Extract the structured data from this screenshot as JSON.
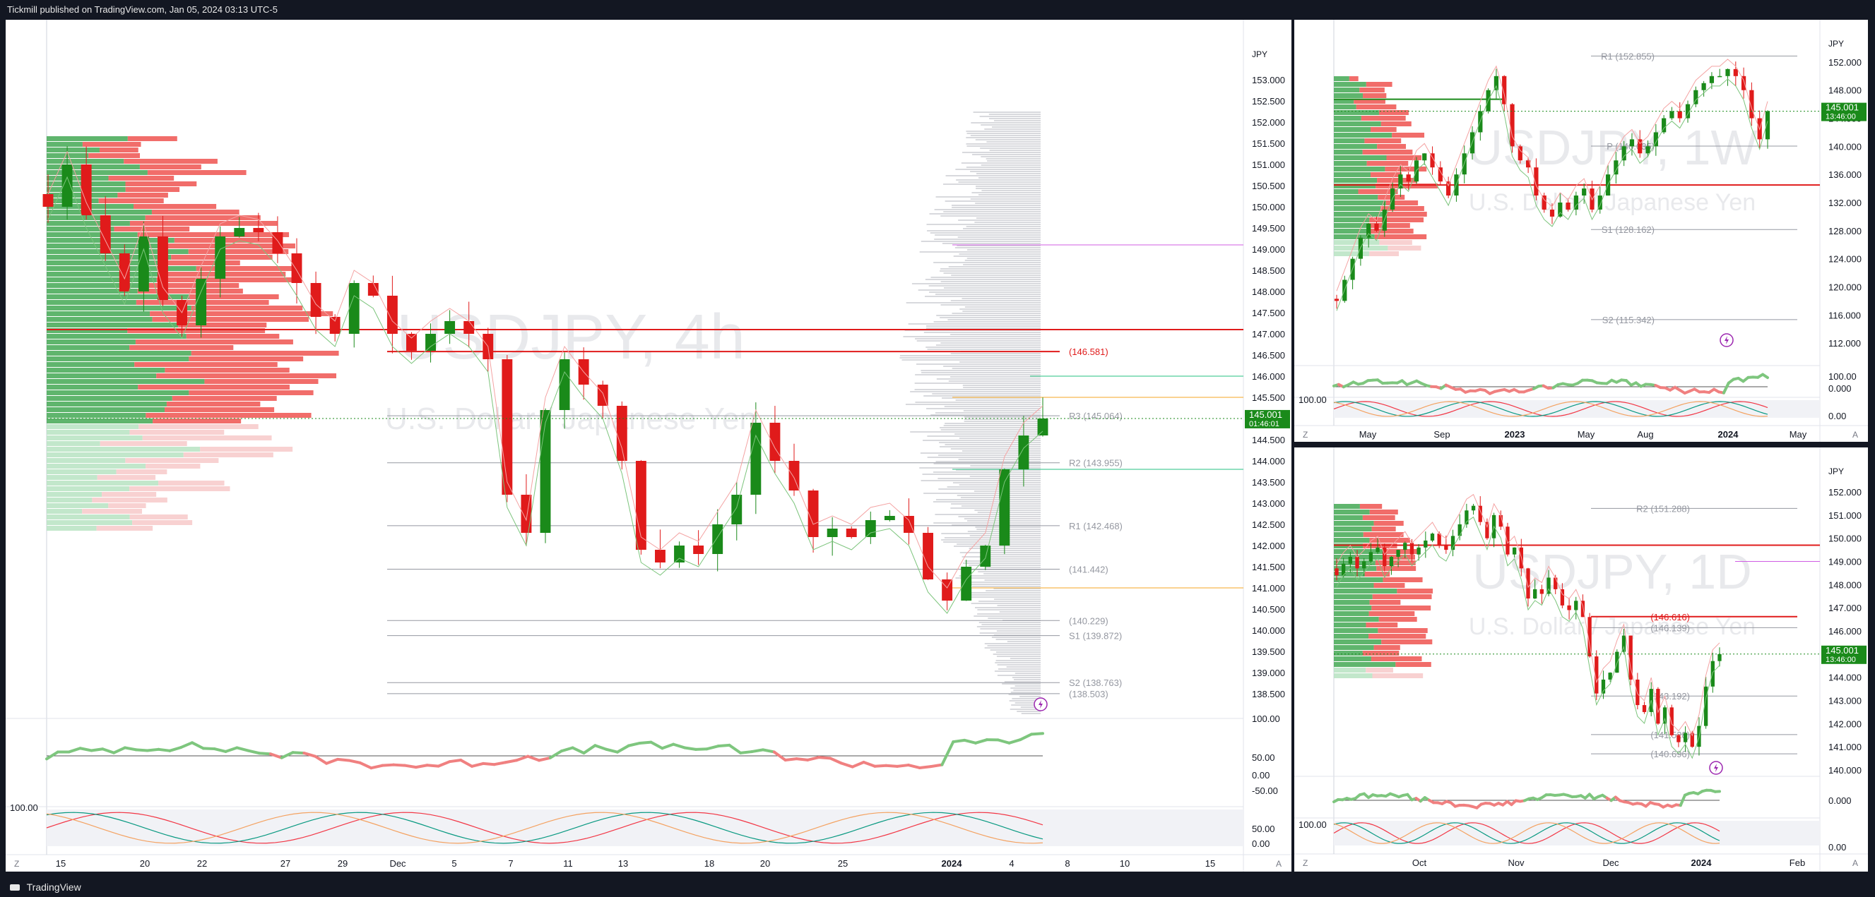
{
  "header": {
    "publish_line": "Tickmill published on TradingView.com, Jan 05, 2024 03:13 UTC-5"
  },
  "footer": {
    "brand": "TradingView"
  },
  "colors": {
    "up": "#089981",
    "down": "#f23645",
    "bull_candle": "#1a8a1a",
    "bear_candle": "#e01b1b"
  },
  "chart_data": [
    {
      "id": "main",
      "type": "candlestick",
      "watermark_symbol": "USDJPY, 4h",
      "watermark_name": "U.S. Dollar / Japanese Yen",
      "currency": "JPY",
      "last_price": "145.001",
      "countdown": "01:46:01",
      "y_ticks": [
        "153.000",
        "152.500",
        "152.000",
        "151.500",
        "151.000",
        "150.500",
        "150.000",
        "149.500",
        "149.000",
        "148.500",
        "148.000",
        "147.500",
        "147.000",
        "146.500",
        "146.000",
        "145.500",
        "145.000",
        "144.500",
        "144.000",
        "143.500",
        "143.000",
        "142.500",
        "142.000",
        "141.500",
        "141.000",
        "140.500",
        "140.000",
        "139.500",
        "139.000",
        "138.500"
      ],
      "x_ticks": [
        "15",
        "20",
        "22",
        "27",
        "29",
        "Dec",
        "5",
        "7",
        "11",
        "13",
        "18",
        "20",
        "25",
        "2024",
        "4",
        "8",
        "10",
        "15"
      ],
      "indicator_ticks": [
        "100.00",
        "50.00",
        "0.00",
        "-50.00"
      ],
      "osc_ticks": [
        "100.00",
        "50.00",
        "0.00"
      ],
      "ylim": [
        138.0,
        153.5
      ],
      "levels": [
        {
          "label": "(146.581)",
          "value": 146.581
        },
        {
          "label": "R3 (145.064)",
          "value": 145.064
        },
        {
          "label": "R2 (143.955)",
          "value": 143.955
        },
        {
          "label": "R1 (142.468)",
          "value": 142.468
        },
        {
          "label": "(141.442)",
          "value": 141.442
        },
        {
          "label": "(140.229)",
          "value": 140.229
        },
        {
          "label": "S1 (139.872)",
          "value": 139.872
        },
        {
          "label": "S2 (138.763)",
          "value": 138.763
        },
        {
          "label": "(138.503)",
          "value": 138.503
        }
      ],
      "closes": [
        150.0,
        151.0,
        149.8,
        148.9,
        148.0,
        149.3,
        147.8,
        147.2,
        148.3,
        149.3,
        149.5,
        149.4,
        148.9,
        148.2,
        147.4,
        147.0,
        148.2,
        147.9,
        147.0,
        146.6,
        147.0,
        147.3,
        147.0,
        146.4,
        143.2,
        142.3,
        145.2,
        146.4,
        145.8,
        145.3,
        144.0,
        141.9,
        141.6,
        142.0,
        141.8,
        142.5,
        143.2,
        144.9,
        144.0,
        143.3,
        142.2,
        142.4,
        142.2,
        142.6,
        142.7,
        142.3,
        141.2,
        140.7,
        141.5,
        142.0,
        143.8,
        144.6,
        145.0
      ],
      "x_range": [
        0,
        70
      ]
    },
    {
      "id": "weekly",
      "type": "candlestick",
      "watermark_symbol": "USDJPY, 1W",
      "watermark_name": "U.S. Dollar / Japanese Yen",
      "currency": "JPY",
      "last_price": "145.001",
      "countdown": "13:46:00",
      "y_ticks": [
        "152.000",
        "148.000",
        "144.000",
        "140.000",
        "136.000",
        "132.000",
        "128.000",
        "124.000",
        "120.000",
        "116.000",
        "112.000"
      ],
      "x_ticks": [
        "May",
        "Sep",
        "2023",
        "May",
        "Aug",
        "2024",
        "May"
      ],
      "indicator_ticks": [
        "100.00",
        "0.000"
      ],
      "osc_ticks": [
        "100.00",
        "0.00"
      ],
      "ylim": [
        110.0,
        154.0
      ],
      "levels": [
        {
          "label": "R1 (152.855)",
          "value": 152.855
        },
        {
          "label": "P (140.035)",
          "value": 140.035
        },
        {
          "label": "S1 (128.162)",
          "value": 128.162
        },
        {
          "label": "S2 (115.342)",
          "value": 115.342
        }
      ],
      "closes": [
        118,
        121,
        124,
        127,
        129,
        128,
        131,
        134,
        136,
        135,
        138,
        139,
        137,
        135,
        133,
        136,
        139,
        142,
        145,
        148,
        150,
        146,
        140,
        138,
        137,
        133,
        131,
        130,
        132,
        131,
        133,
        134,
        131,
        133,
        136,
        138,
        140,
        141,
        139,
        140,
        142,
        144,
        145,
        144,
        146,
        148,
        149,
        150,
        150,
        151,
        150,
        148,
        144,
        141,
        145
      ]
    },
    {
      "id": "daily",
      "type": "candlestick",
      "watermark_symbol": "USDJPY, 1D",
      "watermark_name": "U.S. Dollar / Japanese Yen",
      "currency": "JPY",
      "last_price": "145.001",
      "countdown": "13:46:00",
      "y_ticks": [
        "152.000",
        "151.000",
        "150.000",
        "149.000",
        "148.000",
        "147.000",
        "146.000",
        "145.000",
        "144.000",
        "143.000",
        "142.000",
        "141.000",
        "140.000"
      ],
      "x_ticks": [
        "Oct",
        "Nov",
        "Dec",
        "2024",
        "Feb"
      ],
      "indicator_ticks": [
        "0.000"
      ],
      "osc_ticks": [
        "100.00",
        "0.00"
      ],
      "ylim": [
        139.3,
        152.7
      ],
      "levels": [
        {
          "label": "R2 (151.288)",
          "value": 151.288
        },
        {
          "label": "(146.616)",
          "value": 146.616
        },
        {
          "label": "(146.139)",
          "value": 146.139
        },
        {
          "label": "(143.192)",
          "value": 143.192
        },
        {
          "label": "(141.528)",
          "value": 141.528
        },
        {
          "label": "(140.696)",
          "value": 140.696
        }
      ],
      "closes": [
        148.4,
        148.9,
        149.2,
        148.7,
        149.0,
        149.4,
        149.6,
        148.8,
        149.2,
        149.5,
        149.8,
        149.3,
        149.6,
        149.9,
        150.2,
        149.7,
        149.5,
        150.1,
        150.6,
        151.2,
        151.4,
        150.7,
        150.0,
        151.0,
        150.5,
        149.3,
        149.6,
        148.7,
        147.4,
        147.8,
        147.6,
        148.3,
        147.8,
        147.1,
        146.9,
        147.3,
        146.6,
        144.9,
        143.3,
        143.9,
        144.2,
        145.1,
        145.8,
        143.9,
        142.8,
        142.5,
        143.5,
        142.0,
        142.7,
        141.5,
        141.2,
        141.6,
        141.0,
        141.9,
        143.6,
        144.7,
        145.0
      ]
    }
  ]
}
